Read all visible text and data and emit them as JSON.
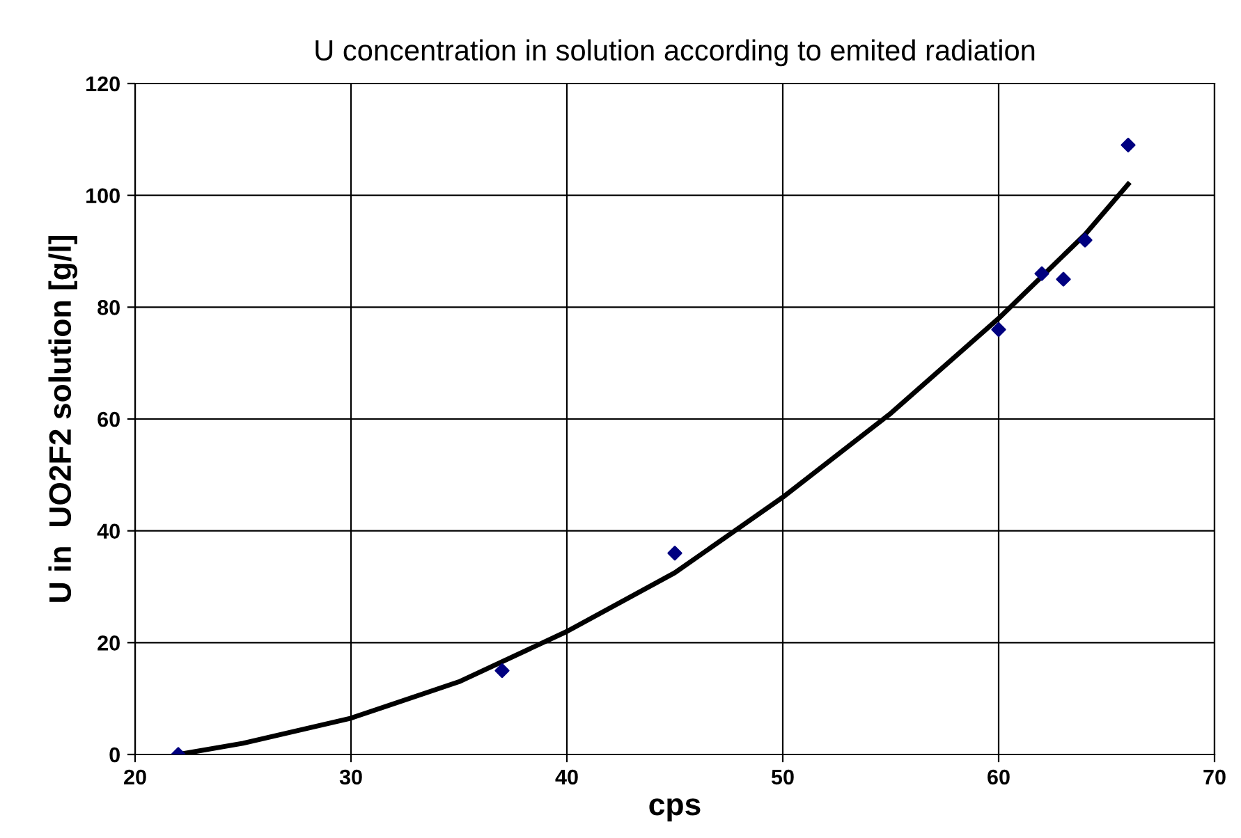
{
  "chart_data": {
    "type": "scatter",
    "title": "U concentration in solution according to emited radiation",
    "xlabel": "cps",
    "ylabel": "U in  UO2F2 solution [g/l]",
    "xlim": [
      20,
      70
    ],
    "xticks": [
      20,
      30,
      40,
      50,
      60,
      70
    ],
    "ylim": [
      0,
      120
    ],
    "yticks": [
      0,
      20,
      40,
      60,
      80,
      100,
      120
    ],
    "grid": true,
    "legend": false,
    "series": [
      {
        "marker": "diamond",
        "color": "#000080",
        "x": [
          22,
          37,
          45,
          60,
          62,
          63,
          64,
          66
        ],
        "values": [
          0,
          15,
          36,
          76,
          86,
          85,
          92,
          109
        ]
      },
      {
        "type": "line",
        "marker": "none",
        "color": "#000000",
        "line_style": "solid",
        "x": [
          22,
          25,
          30,
          35,
          40,
          45,
          50,
          55,
          60,
          62,
          64,
          66
        ],
        "values": [
          0,
          2,
          6.5,
          13,
          22,
          32.5,
          46,
          61,
          78,
          85.5,
          93,
          102
        ]
      }
    ]
  }
}
